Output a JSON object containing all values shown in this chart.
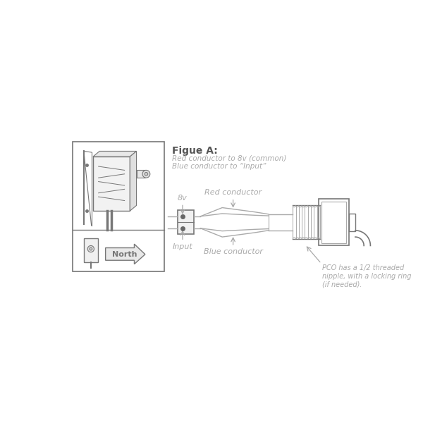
{
  "title": "Figue A:",
  "subtitle1": "Red conductor to 8v (common)",
  "subtitle2": "Blue conductor to “Input”",
  "label_8v": "8v",
  "label_input": "Input",
  "label_red": "Red conductor",
  "label_blue": "Blue conductor",
  "label_pco": "PCO has a 1/2 threaded\nnipple, with a locking ring\n(if needed).",
  "label_north": "North",
  "lc": "#aaaaaa",
  "dc": "#777777",
  "tc": "#aaaaaa",
  "title_color": "#555555"
}
